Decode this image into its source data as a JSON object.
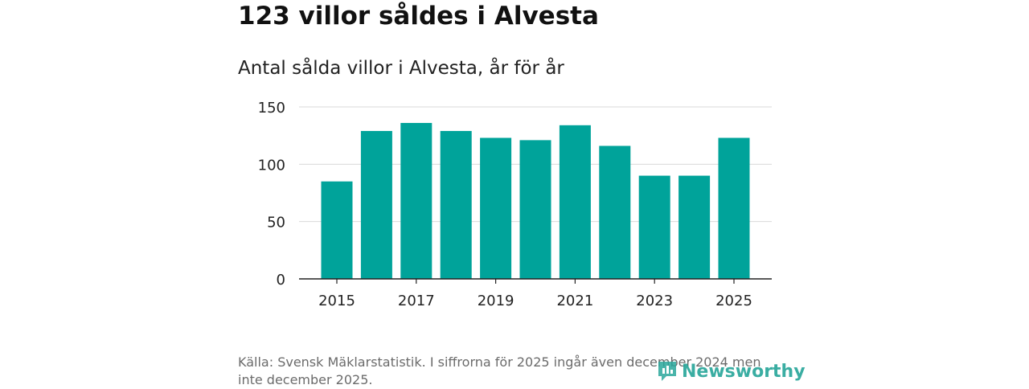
{
  "header": {
    "title": "123 villor såldes i Alvesta",
    "subtitle": "Antal sålda villor i Alvesta, år för år"
  },
  "footer": {
    "source": "Källa: Svensk Mäklarstatistik. I siffrorna för 2025 ingår även december 2024 men inte december 2025.",
    "logo": "Newsworthy"
  },
  "colors": {
    "bar": "#00a39a",
    "grid": "#d9d9d9",
    "axis": "#222222",
    "logo": "#2aa79b"
  },
  "chart_data": {
    "type": "bar",
    "title": "Antal sålda villor i Alvesta, år för år",
    "xlabel": "",
    "ylabel": "",
    "categories": [
      "2015",
      "2016",
      "2017",
      "2018",
      "2019",
      "2020",
      "2021",
      "2022",
      "2023",
      "2024",
      "2025"
    ],
    "values": [
      85,
      129,
      136,
      129,
      123,
      121,
      134,
      116,
      90,
      90,
      123
    ],
    "ylim": [
      0,
      150
    ],
    "yticks": [
      0,
      50,
      100,
      150
    ],
    "xtick_labels": [
      "2015",
      "2017",
      "2019",
      "2021",
      "2023",
      "2025"
    ],
    "grid": true,
    "legend": "none"
  }
}
